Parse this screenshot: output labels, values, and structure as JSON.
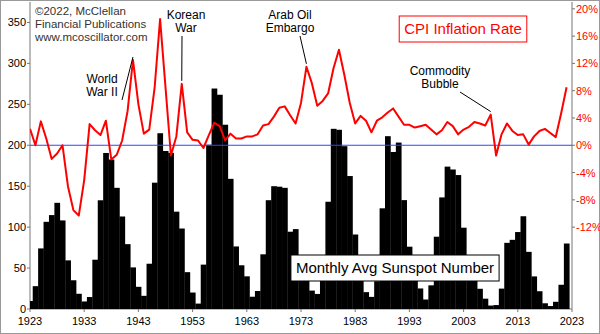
{
  "chart_data": {
    "type": "bar",
    "subtitle": [
      "©2022, McClellan",
      "Financial Publications",
      "www.mcoscillator.com"
    ],
    "x": [
      1923,
      1924,
      1925,
      1926,
      1927,
      1928,
      1929,
      1930,
      1931,
      1932,
      1933,
      1934,
      1935,
      1936,
      1937,
      1938,
      1939,
      1940,
      1941,
      1942,
      1943,
      1944,
      1945,
      1946,
      1947,
      1948,
      1949,
      1950,
      1951,
      1952,
      1953,
      1954,
      1955,
      1956,
      1957,
      1958,
      1959,
      1960,
      1961,
      1962,
      1963,
      1964,
      1965,
      1966,
      1967,
      1968,
      1969,
      1970,
      1971,
      1972,
      1973,
      1974,
      1975,
      1976,
      1977,
      1978,
      1979,
      1980,
      1981,
      1982,
      1983,
      1984,
      1985,
      1986,
      1987,
      1988,
      1989,
      1990,
      1991,
      1992,
      1993,
      1994,
      1995,
      1996,
      1997,
      1998,
      1999,
      2000,
      2001,
      2002,
      2003,
      2004,
      2005,
      2006,
      2007,
      2008,
      2009,
      2010,
      2011,
      2012,
      2013,
      2014,
      2015,
      2016,
      2017,
      2018,
      2019,
      2020,
      2021,
      2022
    ],
    "series": [
      {
        "name": "Monthly Avg Sunspot Number",
        "type": "bar",
        "color": "#000000",
        "values": [
          9.7,
          27.9,
          74.0,
          106.5,
          114.7,
          129.7,
          108.2,
          59.4,
          35.1,
          18.6,
          9.2,
          14.6,
          60.2,
          132.8,
          190.6,
          182.6,
          148.0,
          113.0,
          79.2,
          50.8,
          27.1,
          16.1,
          55.3,
          154.3,
          214.7,
          193.0,
          190.7,
          118.9,
          98.3,
          45.0,
          20.1,
          6.6,
          54.2,
          200.7,
          269.3,
          261.7,
          225.1,
          159.0,
          76.4,
          53.4,
          39.9,
          15.0,
          22.0,
          66.8,
          132.9,
          150.0,
          149.4,
          148.0,
          94.4,
          97.6,
          54.1,
          49.2,
          22.5,
          18.4,
          39.3,
          131.0,
          220.1,
          218.9,
          198.9,
          162.4,
          91.0,
          60.5,
          20.6,
          14.8,
          33.9,
          123.0,
          211.1,
          191.8,
          203.3,
          133.0,
          76.1,
          44.9,
          25.1,
          11.6,
          28.9,
          88.3,
          136.3,
          173.9,
          170.4,
          163.6,
          99.3,
          65.3,
          45.8,
          24.7,
          12.6,
          4.2,
          4.8,
          24.9,
          80.8,
          84.5,
          94.0,
          113.3,
          69.8,
          39.8,
          21.7,
          7.0,
          3.6,
          8.8,
          29.6,
          80.0
        ]
      },
      {
        "name": "CPI Inflation Rate",
        "type": "line",
        "color": "#ff0000",
        "axis": "y2",
        "values": [
          2.4,
          0.0,
          3.5,
          1.0,
          -2.0,
          -1.2,
          0.0,
          -6.0,
          -9.5,
          -10.3,
          -5.1,
          3.1,
          2.2,
          1.5,
          3.6,
          -2.1,
          -1.4,
          0.7,
          5.0,
          12.5,
          6.0,
          1.7,
          2.3,
          8.5,
          18.5,
          8.5,
          -1.5,
          1.3,
          9.0,
          1.9,
          0.8,
          0.7,
          -0.4,
          1.5,
          3.3,
          2.8,
          0.7,
          1.7,
          1.0,
          1.0,
          1.3,
          1.3,
          1.6,
          2.9,
          3.1,
          4.2,
          5.5,
          5.7,
          4.4,
          3.2,
          6.2,
          11.5,
          9.1,
          5.8,
          6.5,
          7.6,
          11.3,
          14.0,
          10.3,
          6.2,
          3.2,
          4.3,
          3.6,
          1.9,
          3.6,
          4.1,
          4.8,
          5.4,
          4.2,
          3.0,
          3.0,
          2.6,
          2.8,
          3.0,
          2.3,
          1.6,
          2.2,
          3.4,
          2.8,
          1.6,
          2.3,
          2.7,
          3.4,
          3.2,
          2.9,
          4.5,
          -1.5,
          1.6,
          3.2,
          2.1,
          1.5,
          1.6,
          0.1,
          1.3,
          2.1,
          2.4,
          1.8,
          1.2,
          4.7,
          8.5
        ]
      }
    ],
    "xlim": [
      1923,
      2023
    ],
    "xticks": [
      1923,
      1933,
      1943,
      1953,
      1963,
      1973,
      1983,
      1993,
      2003,
      2013,
      2023
    ],
    "ylim": [
      0,
      375
    ],
    "yticks": [
      0,
      50,
      100,
      150,
      200,
      250,
      300,
      350
    ],
    "y2lim": [
      -24,
      21
    ],
    "y2ticks": [
      {
        "value": 20,
        "label": "20%"
      },
      {
        "value": 16,
        "label": "16%"
      },
      {
        "value": 12,
        "label": "12%"
      },
      {
        "value": 8,
        "label": "8%"
      },
      {
        "value": 4,
        "label": "4%"
      },
      {
        "value": 0,
        "label": "0%"
      },
      {
        "value": -4,
        "label": "-4%"
      },
      {
        "value": -8,
        "label": "-8%"
      },
      {
        "value": -12,
        "label": "-12%"
      }
    ],
    "annotations": [
      {
        "text": [
          "World",
          "War II"
        ],
        "x": 1942
      },
      {
        "text": [
          "Korean",
          "War"
        ],
        "x": 1951
      },
      {
        "text": [
          "Arab Oil",
          "Embargo"
        ],
        "x": 1974
      },
      {
        "text": [
          "Commodity",
          "Bubble"
        ],
        "x": 2008
      }
    ],
    "grid": false
  }
}
